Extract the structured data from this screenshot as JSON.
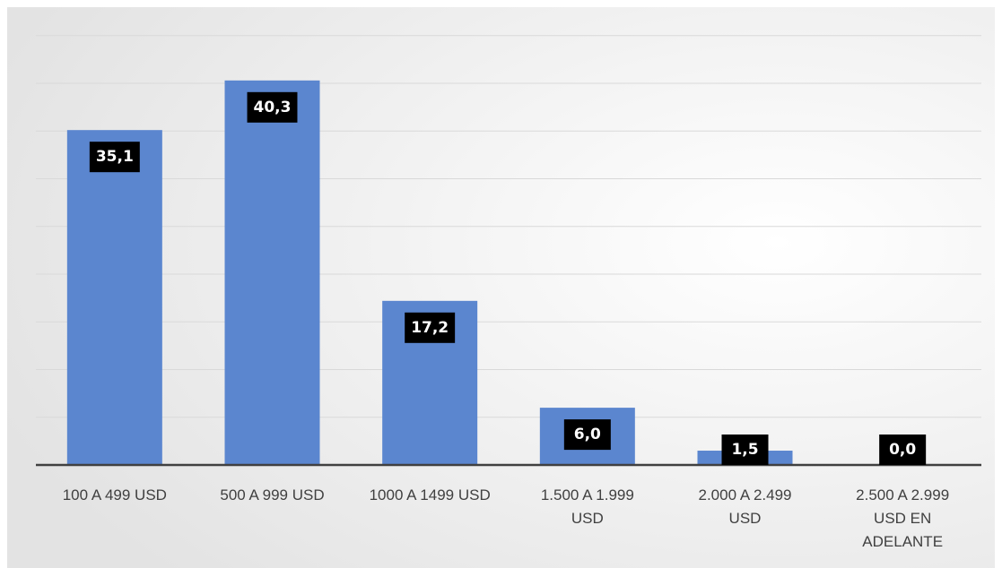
{
  "chart_data": {
    "type": "bar",
    "categories": [
      [
        "100 A 499 USD"
      ],
      [
        "500 A 999 USD"
      ],
      [
        "1000 A 1499 USD"
      ],
      [
        "1.500 A 1.999",
        "USD"
      ],
      [
        "2.000 A 2.499",
        "USD"
      ],
      [
        "2.500 A 2.999",
        "USD EN",
        "ADELANTE"
      ]
    ],
    "values": [
      35.1,
      40.3,
      17.2,
      6.0,
      1.5,
      0.0
    ],
    "data_labels": [
      "35,1",
      "40,3",
      "17,2",
      "6,0",
      "1,5",
      "0,0"
    ],
    "title": "",
    "xlabel": "",
    "ylabel": "",
    "ylim": [
      0,
      45
    ],
    "y_gridline_step": 5,
    "y_tick_labels_shown": false,
    "grid": true,
    "legend": "none",
    "colors": {
      "bar": "#5b86cf",
      "data_label_bg": "#000000",
      "data_label_text": "#ffffff",
      "gridline": "#d9d9d9",
      "axis": "#404040",
      "background_center": "#ffffff",
      "background_edge": "#e3e3e3"
    }
  }
}
